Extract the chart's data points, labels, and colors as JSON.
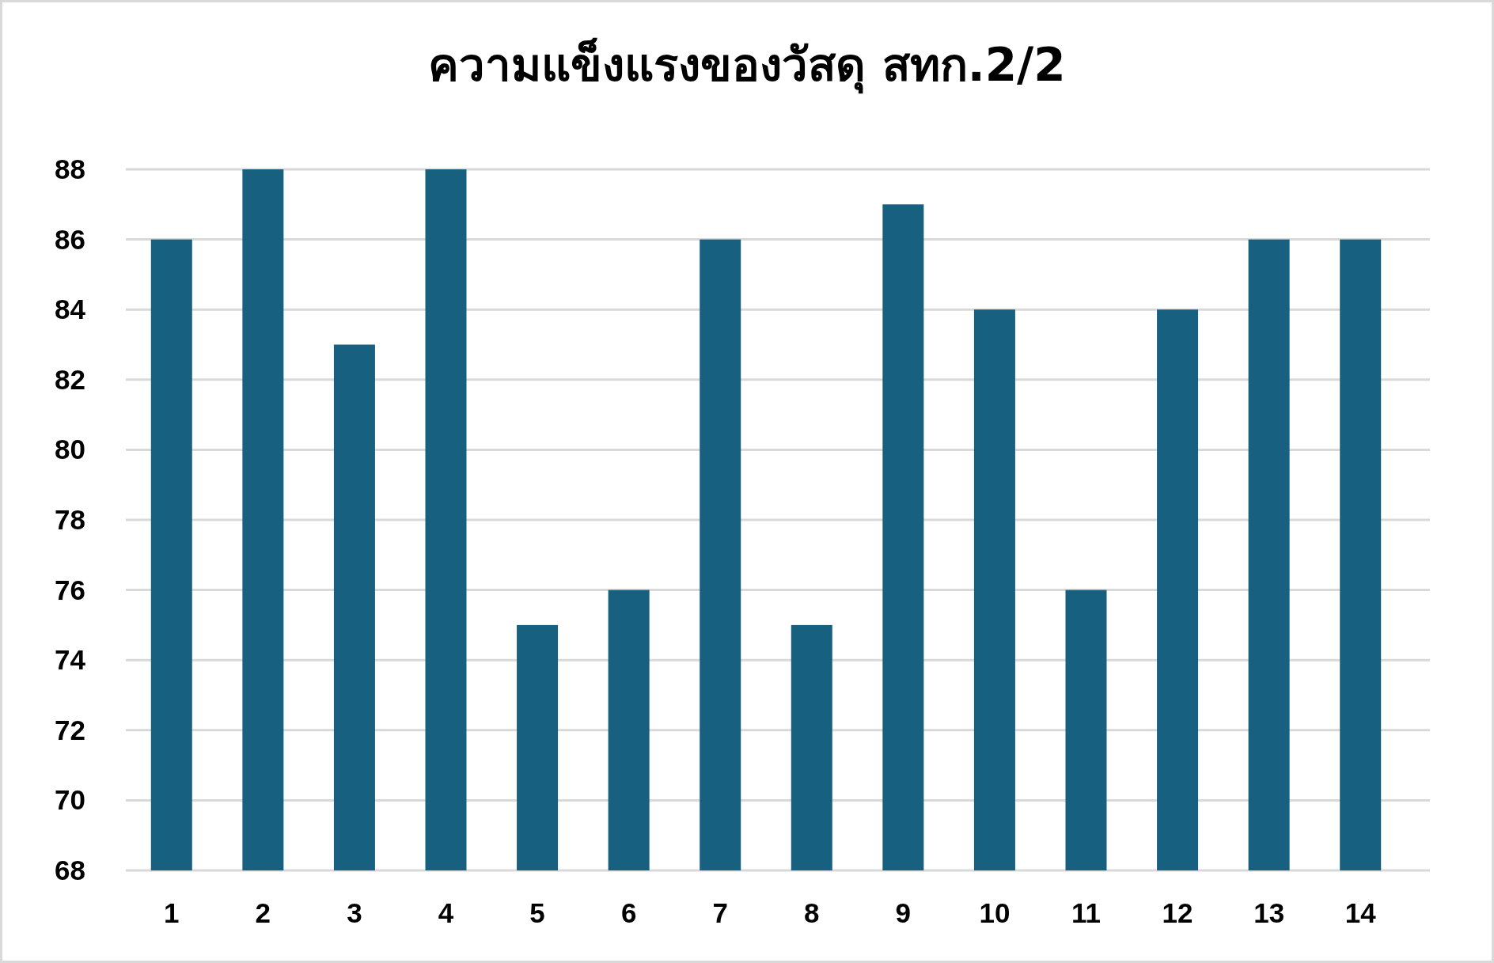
{
  "chart_data": {
    "type": "bar",
    "title": "ความแข็งแรงของวัสดุ สทก.2/2",
    "categories": [
      "1",
      "2",
      "3",
      "4",
      "5",
      "6",
      "7",
      "8",
      "9",
      "10",
      "11",
      "12",
      "13",
      "14"
    ],
    "values": [
      86,
      88,
      83,
      88,
      75,
      76,
      86,
      75,
      87,
      84,
      76,
      84,
      86,
      86
    ],
    "color": "#17607f",
    "ylim": [
      68,
      88
    ],
    "yticks": [
      68,
      70,
      72,
      74,
      76,
      78,
      80,
      82,
      84,
      86,
      88
    ],
    "grid": "y"
  }
}
